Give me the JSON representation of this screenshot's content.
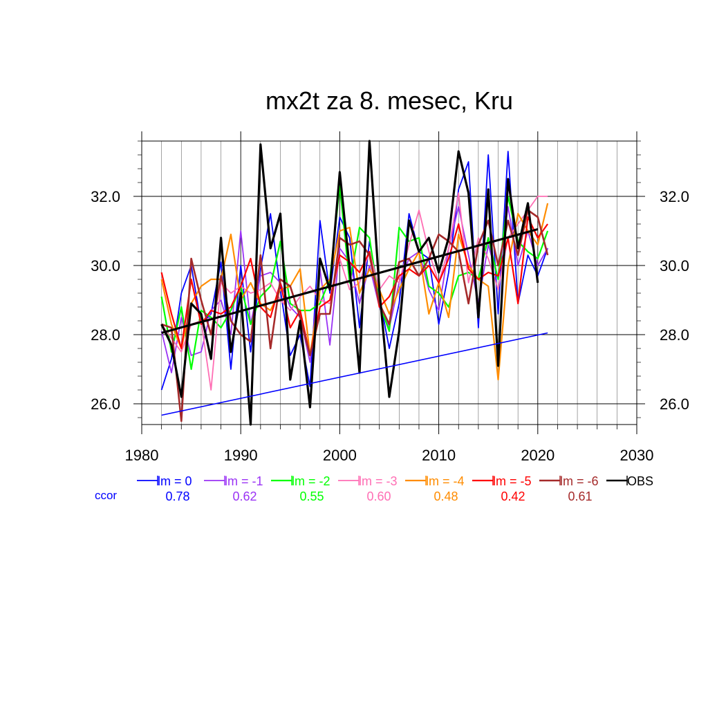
{
  "chart_data": {
    "type": "line",
    "title": "mx2t za 8. mesec, Kru",
    "xlabel": "",
    "ylabel": "",
    "xlim": [
      1980,
      2030
    ],
    "ylim": [
      25.4,
      33.6
    ],
    "x_ticks": [
      1980,
      1990,
      2000,
      2010,
      2020,
      2030
    ],
    "x_tick_labels": [
      "1980",
      "1990",
      "2000",
      "2010",
      "2020",
      "2030"
    ],
    "y_ticks": [
      26,
      28,
      30,
      32
    ],
    "y_tick_labels": [
      "26.0",
      "28.0",
      "30.0",
      "32.0"
    ],
    "grid": true,
    "legend_position": "bottom",
    "ccor_label": "ccor",
    "x": [
      1982,
      1983,
      1984,
      1985,
      1986,
      1987,
      1988,
      1989,
      1990,
      1991,
      1992,
      1993,
      1994,
      1995,
      1996,
      1997,
      1998,
      1999,
      2000,
      2001,
      2002,
      2003,
      2004,
      2005,
      2006,
      2007,
      2008,
      2009,
      2010,
      2011,
      2012,
      2013,
      2014,
      2015,
      2016,
      2017,
      2018,
      2019,
      2020,
      2021
    ],
    "series": [
      {
        "name": "lm = 0",
        "color": "#0000ff",
        "width": 1.8,
        "ccor": "0.78",
        "values": [
          26.4,
          27.3,
          29.2,
          30.0,
          28.3,
          28.6,
          30.1,
          27.0,
          30.0,
          27.5,
          29.9,
          31.5,
          29.3,
          27.4,
          28.0,
          26.5,
          31.3,
          29.2,
          31.4,
          30.8,
          28.2,
          30.7,
          29.1,
          27.6,
          28.9,
          31.5,
          30.4,
          30.2,
          28.3,
          29.8,
          32.2,
          33.0,
          28.2,
          33.2,
          28.6,
          33.3,
          28.9,
          30.3,
          29.7,
          30.5
        ]
      },
      {
        "name": "lm = -1",
        "color": "#9a32f5",
        "width": 1.8,
        "ccor": "0.62",
        "values": [
          28.1,
          26.9,
          28.5,
          27.4,
          27.5,
          28.7,
          29.0,
          28.0,
          31.0,
          28.3,
          29.7,
          29.8,
          29.5,
          28.8,
          28.5,
          27.2,
          29.9,
          27.7,
          30.5,
          30.1,
          28.9,
          30.0,
          28.8,
          28.2,
          29.5,
          30.2,
          30.4,
          29.3,
          28.7,
          30.5,
          31.7,
          30.3,
          28.9,
          30.6,
          29.6,
          31.7,
          30.0,
          31.0,
          30.0,
          30.5
        ]
      },
      {
        "name": "lm = -2",
        "color": "#00ff00",
        "width": 2.2,
        "ccor": "0.55",
        "values": [
          29.1,
          27.5,
          28.8,
          27.0,
          28.7,
          28.5,
          28.2,
          28.7,
          29.4,
          28.3,
          29.1,
          29.4,
          30.7,
          28.9,
          28.7,
          28.7,
          28.9,
          29.6,
          32.3,
          29.5,
          31.1,
          30.8,
          28.9,
          28.1,
          31.1,
          30.7,
          30.8,
          29.4,
          29.2,
          28.8,
          29.7,
          29.8,
          29.6,
          30.8,
          29.6,
          32.0,
          30.7,
          30.4,
          30.2,
          31.0
        ]
      },
      {
        "name": "lm = -3",
        "color": "#ff6eb4",
        "width": 1.8,
        "ccor": "0.60",
        "values": [
          28.3,
          27.9,
          27.5,
          28.3,
          28.4,
          26.4,
          29.5,
          29.2,
          29.4,
          29.2,
          29.3,
          29.5,
          29.0,
          28.7,
          29.1,
          29.4,
          29.0,
          28.9,
          30.2,
          29.3,
          29.5,
          30.4,
          29.3,
          29.7,
          29.5,
          30.6,
          31.6,
          30.4,
          29.5,
          30.5,
          32.1,
          29.5,
          30.8,
          30.2,
          29.3,
          30.8,
          31.2,
          31.6,
          32.0,
          32.0
        ]
      },
      {
        "name": "lm = -4",
        "color": "#ff8c00",
        "width": 2.2,
        "ccor": "0.48",
        "values": [
          29.6,
          28.3,
          27.6,
          28.9,
          29.4,
          29.6,
          29.6,
          30.9,
          29.0,
          29.5,
          28.9,
          28.7,
          29.3,
          29.4,
          29.9,
          27.4,
          29.3,
          29.6,
          31.0,
          31.1,
          29.2,
          29.9,
          29.3,
          28.6,
          29.3,
          29.9,
          30.4,
          28.6,
          29.5,
          28.5,
          30.9,
          30.0,
          29.6,
          29.4,
          26.7,
          30.0,
          31.5,
          31.0,
          30.6,
          31.8
        ]
      },
      {
        "name": "lm = -5",
        "color": "#ff0000",
        "width": 2.2,
        "ccor": "0.42",
        "values": [
          29.8,
          28.6,
          27.6,
          29.6,
          28.3,
          28.7,
          28.6,
          28.8,
          29.4,
          30.2,
          28.8,
          28.5,
          29.5,
          28.2,
          28.7,
          27.4,
          28.8,
          29.0,
          30.3,
          30.1,
          29.8,
          30.4,
          28.8,
          29.1,
          29.7,
          29.9,
          29.7,
          30.0,
          29.5,
          30.2,
          31.2,
          29.9,
          29.6,
          29.8,
          29.7,
          30.8,
          28.9,
          31.4,
          30.8,
          31.2
        ]
      },
      {
        "name": "lm = -6",
        "color": "#a52a2a",
        "width": 2.6,
        "ccor": "0.61",
        "values": [
          28.3,
          28.2,
          25.5,
          30.2,
          29.0,
          28.0,
          29.7,
          28.4,
          28.0,
          27.8,
          30.3,
          27.6,
          29.6,
          29.4,
          28.5,
          27.4,
          28.6,
          28.6,
          30.8,
          30.6,
          30.7,
          30.3,
          28.9,
          28.3,
          30.1,
          30.2,
          29.7,
          30.2,
          30.9,
          30.7,
          30.4,
          28.9,
          30.6,
          31.3,
          30.0,
          31.3,
          30.3,
          31.6,
          31.4,
          30.3
        ]
      },
      {
        "name": "OBS",
        "color": "#000000",
        "width": 3.2,
        "ccor": "",
        "values": [
          28.3,
          27.7,
          26.2,
          28.9,
          28.6,
          27.3,
          30.8,
          27.5,
          29.2,
          25.4,
          33.5,
          30.5,
          31.5,
          26.7,
          28.4,
          25.9,
          30.2,
          29.3,
          32.7,
          29.9,
          26.9,
          33.6,
          29.3,
          26.2,
          28.1,
          31.3,
          30.4,
          30.8,
          29.8,
          30.8,
          33.3,
          32.1,
          28.5,
          32.2,
          27.1,
          32.5,
          30.5,
          31.8,
          29.5,
          null
        ]
      }
    ],
    "trend_lines": [
      {
        "name": "OBS trend",
        "color": "#000000",
        "width": 3.2,
        "x": [
          1982,
          2020
        ],
        "y": [
          28.05,
          31.05
        ]
      },
      {
        "name": "lm = 0 trend",
        "color": "#0000ff",
        "width": 1.6,
        "x": [
          1982,
          2021
        ],
        "y": [
          25.67,
          28.05
        ]
      }
    ]
  }
}
